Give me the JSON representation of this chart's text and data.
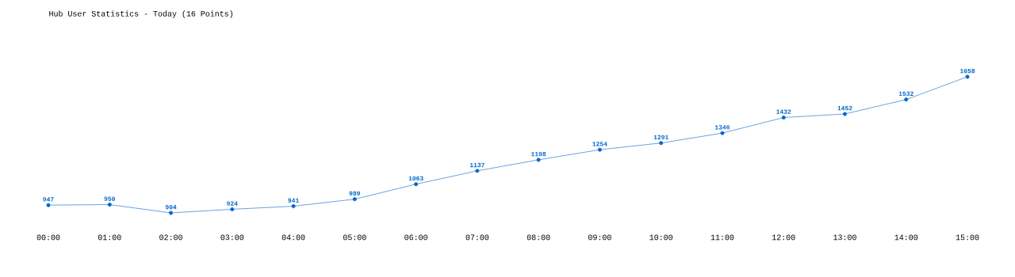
{
  "chart_data": {
    "type": "line",
    "title": "Hub User Statistics - Today (16 Points)",
    "categories": [
      "00:00",
      "01:00",
      "02:00",
      "03:00",
      "04:00",
      "05:00",
      "06:00",
      "07:00",
      "08:00",
      "09:00",
      "10:00",
      "11:00",
      "12:00",
      "13:00",
      "14:00",
      "15:00"
    ],
    "values": [
      947,
      950,
      904,
      924,
      941,
      980,
      1063,
      1137,
      1198,
      1254,
      1291,
      1346,
      1432,
      1452,
      1532,
      1658
    ],
    "color": "#0066cc",
    "marker": "circle",
    "data_labels": true
  }
}
